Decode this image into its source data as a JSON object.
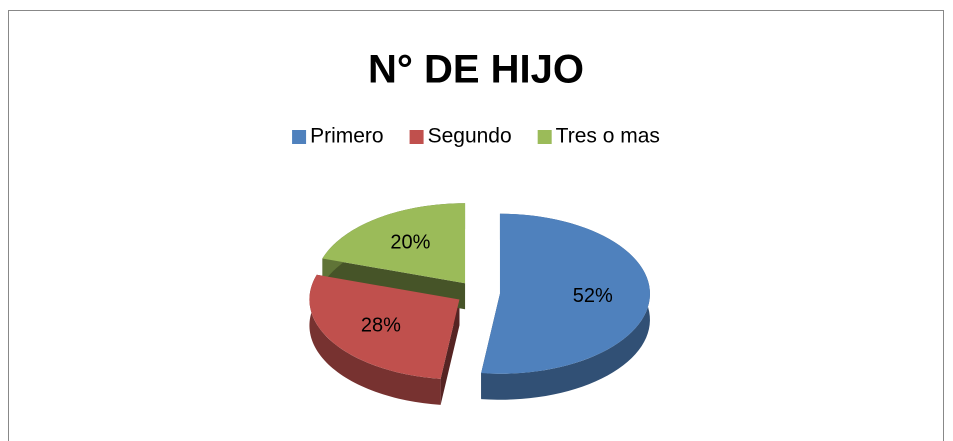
{
  "chart_data": {
    "type": "pie",
    "title": "N° DE HIJO",
    "categories": [
      "Primero",
      "Segundo",
      "Tres o mas"
    ],
    "values": [
      52,
      28,
      20
    ],
    "value_labels": [
      "52%",
      "28%",
      "20%"
    ],
    "colors": [
      "#4f81bd",
      "#c0504d",
      "#9bbb59"
    ],
    "legend": "top"
  }
}
